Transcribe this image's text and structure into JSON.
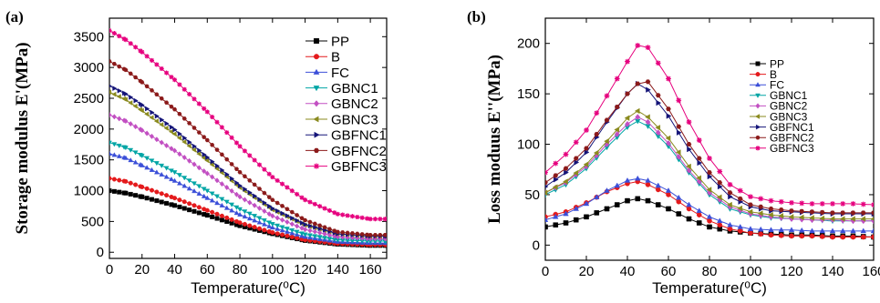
{
  "chart_data": [
    {
      "panel": "(a)",
      "type": "line",
      "xlabel": "Temperature(⁰C)",
      "ylabel": "Storage modulus E'(MPa)",
      "xlim": [
        0,
        170
      ],
      "ylim": [
        -100,
        3800
      ],
      "xticks": [
        0,
        20,
        40,
        60,
        80,
        100,
        120,
        140,
        160
      ],
      "yticks": [
        0,
        500,
        1000,
        1500,
        2000,
        2500,
        3000,
        3500
      ],
      "legend_position": "top-right",
      "series": [
        {
          "name": "PP",
          "color": "#000000",
          "marker": "square",
          "x": [
            0,
            10,
            20,
            40,
            60,
            80,
            100,
            120,
            140,
            160,
            170
          ],
          "y": [
            1000,
            960,
            900,
            760,
            600,
            430,
            300,
            190,
            130,
            110,
            110
          ]
        },
        {
          "name": "B",
          "color": "#e41a1c",
          "marker": "circle",
          "x": [
            0,
            10,
            20,
            40,
            60,
            80,
            100,
            120,
            140,
            160,
            170
          ],
          "y": [
            1200,
            1150,
            1060,
            880,
            680,
            480,
            320,
            200,
            140,
            120,
            120
          ]
        },
        {
          "name": "FC",
          "color": "#3b4fd8",
          "marker": "triangle-up",
          "x": [
            0,
            10,
            20,
            40,
            60,
            80,
            100,
            120,
            140,
            160,
            170
          ],
          "y": [
            1600,
            1530,
            1410,
            1160,
            880,
            610,
            400,
            250,
            170,
            150,
            150
          ]
        },
        {
          "name": "GBNC1",
          "color": "#00a5a5",
          "marker": "triangle-down",
          "x": [
            0,
            10,
            20,
            40,
            60,
            80,
            100,
            120,
            140,
            160,
            170
          ],
          "y": [
            1780,
            1700,
            1570,
            1300,
            1000,
            700,
            460,
            290,
            200,
            180,
            180
          ]
        },
        {
          "name": "GBNC2",
          "color": "#c24fc2",
          "marker": "diamond",
          "x": [
            0,
            10,
            20,
            40,
            60,
            80,
            100,
            120,
            140,
            160,
            170
          ],
          "y": [
            2230,
            2130,
            1980,
            1650,
            1280,
            900,
            590,
            370,
            250,
            220,
            220
          ]
        },
        {
          "name": "GBNC3",
          "color": "#8a8a1e",
          "marker": "triangle-left",
          "x": [
            0,
            10,
            20,
            40,
            60,
            80,
            100,
            120,
            140,
            160,
            170
          ],
          "y": [
            2600,
            2480,
            2300,
            1920,
            1490,
            1050,
            690,
            440,
            300,
            260,
            260
          ]
        },
        {
          "name": "GBFNC1",
          "color": "#141478",
          "marker": "triangle-right",
          "x": [
            0,
            10,
            20,
            40,
            60,
            80,
            100,
            120,
            140,
            160,
            170
          ],
          "y": [
            2700,
            2570,
            2390,
            1990,
            1540,
            1080,
            710,
            450,
            300,
            260,
            260
          ]
        },
        {
          "name": "GBFNC2",
          "color": "#8b1a1a",
          "marker": "hexagon",
          "x": [
            0,
            10,
            20,
            40,
            60,
            80,
            100,
            120,
            140,
            160,
            170
          ],
          "y": [
            3100,
            2960,
            2760,
            2320,
            1820,
            1300,
            850,
            520,
            330,
            280,
            280
          ]
        },
        {
          "name": "GBFNC3",
          "color": "#e6007e",
          "marker": "star",
          "x": [
            0,
            10,
            20,
            40,
            60,
            80,
            100,
            120,
            140,
            160,
            170
          ],
          "y": [
            3600,
            3450,
            3250,
            2800,
            2280,
            1720,
            1220,
            850,
            620,
            540,
            540
          ]
        }
      ]
    },
    {
      "panel": "(b)",
      "type": "line",
      "xlabel": "Temperature(⁰C)",
      "ylabel": "Loss moduus E''(MPa)",
      "xlim": [
        0,
        160
      ],
      "ylim": [
        -15,
        225
      ],
      "xticks": [
        0,
        20,
        40,
        60,
        80,
        100,
        120,
        140,
        160
      ],
      "yticks": [
        0,
        50,
        100,
        150,
        200
      ],
      "legend_position": "top-right",
      "series": [
        {
          "name": "PP",
          "color": "#000000",
          "marker": "square",
          "x": [
            0,
            10,
            20,
            30,
            40,
            45,
            50,
            60,
            70,
            80,
            90,
            100,
            110,
            120,
            130,
            140,
            150,
            160
          ],
          "y": [
            18,
            22,
            28,
            36,
            44,
            46,
            44,
            36,
            26,
            18,
            14,
            12,
            11,
            10,
            10,
            9,
            9,
            8
          ]
        },
        {
          "name": "B",
          "color": "#e41a1c",
          "marker": "circle",
          "x": [
            0,
            10,
            20,
            30,
            40,
            45,
            50,
            60,
            70,
            80,
            90,
            100,
            110,
            120,
            130,
            140,
            150,
            160
          ],
          "y": [
            28,
            33,
            42,
            53,
            61,
            63,
            60,
            50,
            36,
            24,
            16,
            12,
            10,
            9,
            9,
            8,
            8,
            8
          ]
        },
        {
          "name": "FC",
          "color": "#3b4fd8",
          "marker": "triangle-up",
          "x": [
            0,
            10,
            20,
            30,
            40,
            45,
            50,
            60,
            70,
            80,
            90,
            100,
            110,
            120,
            130,
            140,
            150,
            160
          ],
          "y": [
            25,
            31,
            41,
            54,
            64,
            66,
            64,
            54,
            40,
            28,
            20,
            16,
            15,
            15,
            14,
            14,
            14,
            14
          ]
        },
        {
          "name": "GBNC1",
          "color": "#00a5a5",
          "marker": "triangle-down",
          "x": [
            0,
            10,
            20,
            30,
            40,
            45,
            50,
            60,
            70,
            80,
            90,
            100,
            110,
            120,
            130,
            140,
            150,
            160
          ],
          "y": [
            50,
            60,
            76,
            97,
            117,
            123,
            118,
            98,
            72,
            50,
            36,
            30,
            27,
            26,
            25,
            24,
            24,
            24
          ]
        },
        {
          "name": "GBNC2",
          "color": "#c24fc2",
          "marker": "diamond",
          "x": [
            0,
            10,
            20,
            30,
            40,
            45,
            50,
            60,
            70,
            80,
            90,
            100,
            110,
            120,
            130,
            140,
            150,
            160
          ],
          "y": [
            52,
            62,
            78,
            100,
            120,
            127,
            122,
            101,
            74,
            52,
            38,
            31,
            28,
            26,
            25,
            25,
            24,
            24
          ]
        },
        {
          "name": "GBNC3",
          "color": "#8a8a1e",
          "marker": "triangle-left",
          "x": [
            0,
            10,
            20,
            30,
            40,
            45,
            50,
            60,
            70,
            80,
            90,
            100,
            110,
            120,
            130,
            140,
            150,
            160
          ],
          "y": [
            52,
            63,
            80,
            103,
            126,
            133,
            127,
            106,
            78,
            55,
            40,
            33,
            30,
            28,
            27,
            26,
            26,
            26
          ]
        },
        {
          "name": "GBFNC1",
          "color": "#141478",
          "marker": "triangle-right",
          "x": [
            0,
            10,
            20,
            30,
            40,
            45,
            50,
            60,
            70,
            80,
            90,
            100,
            110,
            120,
            130,
            140,
            150,
            160
          ],
          "y": [
            58,
            72,
            92,
            122,
            150,
            160,
            154,
            128,
            95,
            68,
            48,
            38,
            34,
            33,
            32,
            31,
            31,
            31
          ]
        },
        {
          "name": "GBFNC2",
          "color": "#8b1a1a",
          "marker": "hexagon",
          "x": [
            0,
            10,
            20,
            30,
            40,
            45,
            50,
            60,
            70,
            80,
            90,
            100,
            110,
            120,
            130,
            140,
            150,
            160
          ],
          "y": [
            62,
            76,
            96,
            124,
            150,
            160,
            162,
            135,
            100,
            72,
            52,
            40,
            36,
            34,
            33,
            32,
            32,
            32
          ]
        },
        {
          "name": "GBFNC3",
          "color": "#e6007e",
          "marker": "star",
          "x": [
            0,
            10,
            20,
            30,
            40,
            45,
            50,
            60,
            70,
            80,
            90,
            100,
            110,
            120,
            130,
            140,
            150,
            160
          ],
          "y": [
            72,
            90,
            114,
            148,
            182,
            198,
            196,
            165,
            122,
            86,
            60,
            48,
            44,
            42,
            41,
            41,
            41,
            40
          ]
        }
      ]
    }
  ]
}
